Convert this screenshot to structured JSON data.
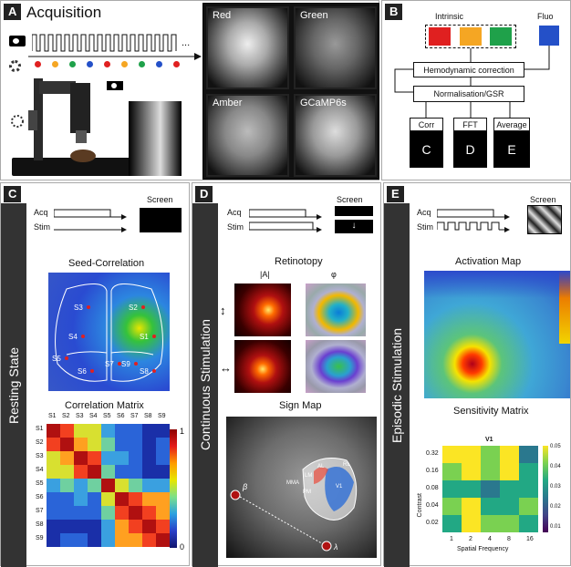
{
  "panelA": {
    "tag": "A",
    "title": "Acquisition",
    "dots_colors": [
      "#e02020",
      "#f5a623",
      "#1fa14a",
      "#2450c8",
      "#e02020",
      "#f5a623",
      "#1fa14a",
      "#2450c8",
      "#e02020"
    ],
    "images": [
      "Red",
      "Green",
      "Amber",
      "GCaMP6s"
    ],
    "ellipsis": "..."
  },
  "panelB": {
    "tag": "B",
    "intrinsic": "Intrinsic",
    "fluo": "Fluo",
    "colors": [
      "#e02020",
      "#f5a623",
      "#1fa14a",
      "#2450c8"
    ],
    "hemo": "Hemodynamic correction",
    "norm": "Normalisation/GSR",
    "outputs": [
      {
        "label": "Corr",
        "letter": "C"
      },
      {
        "label": "FFT",
        "letter": "D"
      },
      {
        "label": "Average",
        "letter": "E"
      }
    ]
  },
  "panelC": {
    "tag": "C",
    "side": "Resting State",
    "acq": "Acq",
    "stim": "Stim",
    "screen": "Screen",
    "seed_title": "Seed-Correlation",
    "seeds": [
      "S3",
      "S2",
      "S4",
      "S1",
      "S5",
      "S6",
      "S7",
      "S9",
      "S8"
    ],
    "matrix_title": "Correlation Matrix",
    "labels": [
      "S1",
      "S2",
      "S3",
      "S4",
      "S5",
      "S6",
      "S7",
      "S8",
      "S9"
    ],
    "scale_max": "1",
    "scale_min": "0"
  },
  "panelD": {
    "tag": "D",
    "side": "Continuous Stimulation",
    "acq": "Acq",
    "stim": "Stim",
    "screen": "Screen",
    "retino": "Retinotopy",
    "amp": "|A|",
    "phase": "φ",
    "sign": "Sign Map",
    "areas": [
      "AL",
      "LM",
      "MMA",
      "RL",
      "PM",
      "V1"
    ],
    "beta": "β",
    "lambda": "λ"
  },
  "panelE": {
    "tag": "E",
    "side": "Episodic Stimulation",
    "acq": "Acq",
    "stim": "Stim",
    "screen": "Screen",
    "activation": "Activation Map",
    "sens": "Sensitivity Matrix",
    "chart_title": "V1",
    "ylabel": "Contrast",
    "xlabel": "Spatial Frequency",
    "yticks": [
      "0.32",
      "0.16",
      "0.08",
      "0.04",
      "0.02"
    ],
    "xticks": [
      "1",
      "2",
      "4",
      "8",
      "16"
    ],
    "cticks": [
      "0.05",
      "0.04",
      "0.03",
      "0.02",
      "0.01"
    ]
  }
}
